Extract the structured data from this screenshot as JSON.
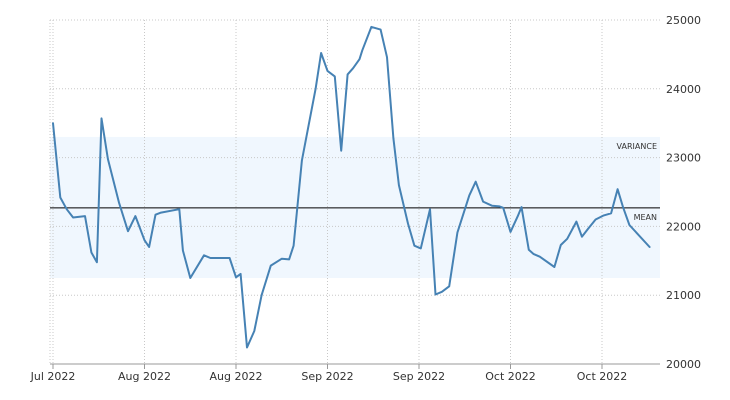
{
  "chart_data": {
    "type": "line",
    "title": "",
    "xlabel": "",
    "ylabel": "",
    "x_tick_labels": [
      "Jul 2022",
      "Aug 2022",
      "Aug 2022",
      "Sep 2022",
      "Sep 2022",
      "Oct 2022",
      "Oct 2022"
    ],
    "y_ticks": [
      20000,
      21000,
      22000,
      23000,
      24000,
      25000
    ],
    "ylim": [
      20000,
      25000
    ],
    "grid": true,
    "y_axis_position": "right",
    "mean": 22270,
    "variance_band": [
      21250,
      23300
    ],
    "annotations": {
      "variance": "VARIANCE",
      "mean": "MEAN"
    },
    "colors": {
      "line": "#4682b4",
      "band": "#f0f7fe",
      "mean_line": "#000000",
      "grid": "#c8c8c8"
    },
    "series": [
      {
        "x_index": [
          0,
          0.08,
          0.15,
          0.22,
          0.35,
          0.42,
          0.48,
          0.53,
          0.6,
          0.72,
          0.82,
          0.9,
          1.0,
          1.05,
          1.12,
          1.18,
          1.38,
          1.42,
          1.5,
          1.65,
          1.72,
          1.8,
          1.93,
          2.0,
          2.05,
          2.12,
          2.2,
          2.28,
          2.38,
          2.5,
          2.58,
          2.63,
          2.72,
          2.87,
          2.93,
          3.0,
          3.08,
          3.15,
          3.22,
          3.28,
          3.35,
          3.38,
          3.48,
          3.58,
          3.65,
          3.72,
          3.78,
          3.88,
          3.95,
          4.02,
          4.12,
          4.18,
          4.25,
          4.33,
          4.42,
          4.55,
          4.62,
          4.7,
          4.8,
          4.88,
          4.92,
          5.0,
          5.08,
          5.12,
          5.2,
          5.25,
          5.32,
          5.48,
          5.55,
          5.62,
          5.72,
          5.78,
          5.85,
          5.93,
          6.02,
          6.1,
          6.17,
          6.23,
          6.3,
          6.52
        ],
        "values": [
          23500,
          22420,
          22250,
          22130,
          22150,
          21620,
          21480,
          23570,
          22980,
          22350,
          21930,
          22150,
          21800,
          21700,
          22170,
          22200,
          22250,
          21650,
          21250,
          21580,
          21540,
          21540,
          21540,
          21260,
          21310,
          20240,
          20480,
          21000,
          21430,
          21530,
          21520,
          21720,
          22960,
          24000,
          24520,
          24260,
          24180,
          23100,
          24210,
          24300,
          24430,
          24560,
          24900,
          24860,
          24460,
          23280,
          22600,
          22040,
          21720,
          21680,
          22250,
          21010,
          21050,
          21130,
          21910,
          22450,
          22650,
          22360,
          22300,
          22290,
          22270,
          21920,
          22150,
          22280,
          21660,
          21600,
          21560,
          21410,
          21730,
          21820,
          22070,
          21850,
          21970,
          22100,
          22160,
          22190,
          22540,
          22280,
          22020,
          21700
        ]
      }
    ]
  }
}
